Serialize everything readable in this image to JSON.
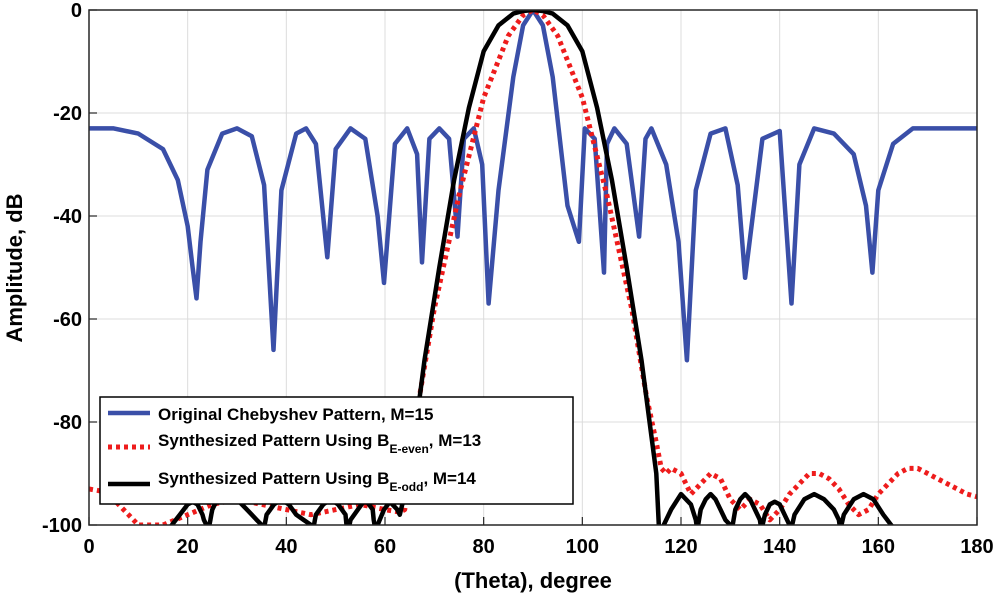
{
  "chart_data": {
    "type": "line",
    "title": "",
    "xlabel": "(Theta), degree",
    "ylabel": "Amplitude, dB",
    "xlim": [
      0,
      180
    ],
    "ylim": [
      -100,
      0
    ],
    "xticks": [
      "0",
      "20",
      "40",
      "60",
      "80",
      "100",
      "120",
      "140",
      "160",
      "180"
    ],
    "yticks": [
      "0",
      "-20",
      "-40",
      "-60",
      "-80",
      "-100"
    ],
    "grid": true,
    "legend_position": "lower-left",
    "series": [
      {
        "name": "Original Chebyshev Pattern, M=15",
        "legend_main": "Original Chebyshev Pattern, M=15",
        "color": "#3a4fa8",
        "style": "solid",
        "x": [
          0,
          5,
          10,
          15,
          18,
          20,
          21,
          21.8,
          22.6,
          24,
          27,
          30,
          33,
          35.5,
          37.4,
          39,
          42,
          44,
          46,
          48.3,
          50,
          53,
          56,
          58.5,
          59.8,
          62,
          64.5,
          66.5,
          67.5,
          69,
          71,
          73,
          74.7,
          76,
          78,
          79.7,
          81,
          83,
          86,
          88,
          90,
          92,
          94,
          97,
          99.3,
          100.5,
          102.5,
          104.4,
          105,
          106.5,
          109,
          111.5,
          112.8,
          114,
          117,
          119.5,
          121.2,
          123,
          126,
          129,
          131.5,
          133,
          136.5,
          140,
          142.4,
          144,
          147,
          151,
          155,
          157.5,
          158.8,
          160,
          163,
          167,
          172,
          176,
          180
        ],
        "y": [
          -23,
          -23,
          -24,
          -27,
          -33,
          -42,
          -50,
          -56,
          -45,
          -31,
          -24,
          -23,
          -24.5,
          -34,
          -66,
          -35,
          -24,
          -23,
          -26,
          -48,
          -27,
          -23,
          -25,
          -40,
          -53,
          -26,
          -23,
          -28,
          -49,
          -25,
          -23,
          -25,
          -44,
          -25,
          -23,
          -30,
          -57,
          -35,
          -13,
          -3,
          0,
          -3,
          -13,
          -38,
          -45,
          -23,
          -25,
          -51,
          -26,
          -23,
          -26,
          -44,
          -25,
          -23,
          -30,
          -45,
          -68,
          -35,
          -24,
          -23,
          -34,
          -52,
          -25,
          -23.5,
          -57,
          -30,
          -23,
          -24,
          -28,
          -38,
          -51,
          -35,
          -26,
          -23,
          -23,
          -23,
          -23
        ]
      },
      {
        "name": "Synthesized Pattern Using BE-even, M=13",
        "legend_main": "Synthesized Pattern Using B",
        "legend_sub": "E-even",
        "legend_tail": ", M=13",
        "color": "#ee1c1c",
        "style": "dotted",
        "x": [
          0,
          3,
          5,
          8,
          10,
          12,
          15,
          20,
          25,
          30,
          35,
          40,
          45,
          50,
          55,
          60,
          63,
          64,
          65,
          66,
          67,
          70,
          75,
          80,
          85,
          88,
          90,
          92,
          95,
          100,
          105,
          110,
          113,
          115,
          116,
          117,
          118,
          120,
          122,
          124,
          126,
          128,
          130,
          132,
          134,
          136,
          138,
          140,
          142,
          144,
          146,
          148,
          150,
          152,
          154,
          156,
          158,
          160,
          162,
          164,
          166,
          168,
          170,
          172,
          174,
          176,
          178,
          180
        ],
        "y": [
          -93,
          -93.5,
          -95,
          -98,
          -100,
          -100,
          -100,
          -98,
          -96,
          -95,
          -96,
          -97,
          -98,
          -97,
          -96,
          -97,
          -97.5,
          -97,
          -91,
          -83,
          -75,
          -58,
          -36,
          -17,
          -5,
          -1,
          0,
          -1,
          -5,
          -17,
          -36,
          -58,
          -75,
          -84,
          -89,
          -90,
          -89,
          -90,
          -94,
          -92,
          -90,
          -91,
          -95,
          -97,
          -95,
          -96,
          -99,
          -97,
          -94,
          -92,
          -90,
          -90,
          -91,
          -93,
          -96,
          -98,
          -97,
          -94,
          -92,
          -90,
          -89,
          -89,
          -90,
          -91,
          -92,
          -93,
          -94,
          -94.5
        ]
      },
      {
        "name": "Synthesized Pattern Using BE-odd, M=14",
        "legend_main": "Synthesized Pattern Using B",
        "legend_sub": "E-odd",
        "legend_tail": ", M=14",
        "color": "#000000",
        "style": "solid",
        "x": [
          16,
          16.8,
          17.6,
          18.4,
          19.2,
          20,
          21,
          22,
          23,
          23.3,
          23.8,
          24,
          24.2,
          24.4,
          24.6,
          24.8,
          25,
          26,
          27,
          28,
          29,
          30,
          31,
          32,
          33,
          34,
          35,
          35.2,
          35.4,
          35.6,
          35.8,
          36,
          37.5,
          39,
          40.5,
          42,
          43.5,
          45,
          45.2,
          45.4,
          45.6,
          45.8,
          46,
          47.5,
          49,
          50.5,
          52,
          52.2,
          52.4,
          52.6,
          52.8,
          53,
          54.5,
          56,
          57.5,
          57.7,
          57.9,
          58.1,
          58.3,
          58.5,
          59.8,
          61,
          62.5,
          63,
          65,
          66.5,
          68,
          71,
          74,
          77,
          80,
          83,
          86,
          88,
          90,
          92,
          94,
          97,
          100,
          103,
          106,
          109,
          112,
          113.5,
          115,
          115.5,
          116,
          118,
          120,
          122,
          123,
          123.3,
          124,
          125,
          126,
          127,
          128,
          129,
          130,
          130.3,
          131,
          132,
          133,
          134,
          135,
          136,
          136.3,
          137,
          138,
          139,
          140,
          141,
          142,
          142.3,
          143,
          145,
          147,
          149,
          151,
          152,
          152.3,
          153,
          155,
          157,
          159,
          161,
          163,
          163.3
        ],
        "y": [
          -101,
          -100,
          -99,
          -98,
          -97,
          -96,
          -95.5,
          -96,
          -98,
          -99,
          -100,
          -101,
          -101,
          -100,
          -99,
          -98,
          -97,
          -95,
          -94,
          -93.5,
          -94,
          -95,
          -96,
          -97,
          -98,
          -99,
          -100,
          -101,
          -101,
          -100,
          -99,
          -98,
          -96,
          -95,
          -96,
          -98,
          -99,
          -100,
          -101,
          -101,
          -100,
          -99,
          -98,
          -96,
          -95,
          -96,
          -98,
          -100,
          -101,
          -101,
          -100,
          -99,
          -97,
          -95,
          -97,
          -99,
          -100,
          -101,
          -101,
          -100,
          -97,
          -95.5,
          -97,
          -98,
          -90,
          -79,
          -68,
          -50,
          -33,
          -19,
          -8,
          -3,
          -0.7,
          -0.2,
          0,
          -0.2,
          -0.7,
          -3,
          -8,
          -19,
          -33,
          -50,
          -68,
          -79,
          -90,
          -100,
          -101,
          -97,
          -94,
          -96,
          -99,
          -101,
          -97,
          -95,
          -94,
          -95,
          -97,
          -99,
          -100,
          -101,
          -97,
          -95,
          -94,
          -95,
          -97,
          -99,
          -101,
          -98,
          -96,
          -95.5,
          -96,
          -98,
          -100,
          -101,
          -98,
          -95,
          -94,
          -95,
          -97,
          -99,
          -101,
          -98,
          -95,
          -94,
          -95,
          -98,
          -100.5,
          -101
        ]
      }
    ]
  }
}
